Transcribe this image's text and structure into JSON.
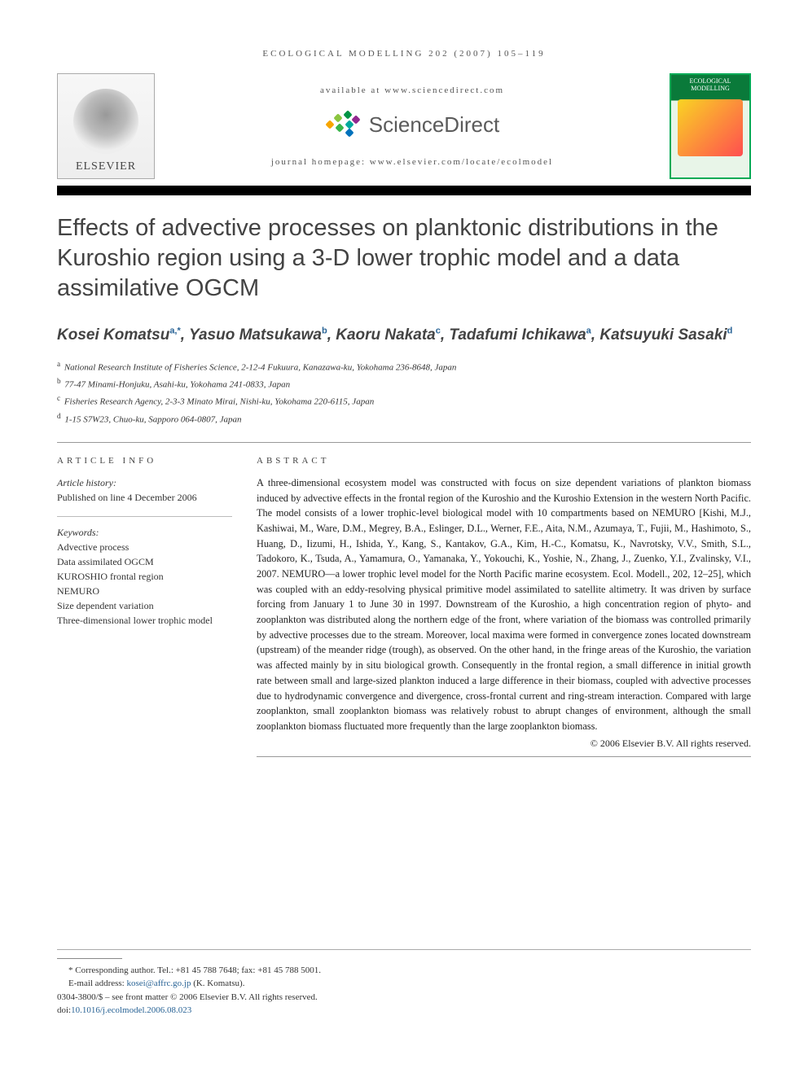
{
  "running_head": "ECOLOGICAL MODELLING 202 (2007) 105–119",
  "masthead": {
    "elsevier_wordmark": "ELSEVIER",
    "available_line": "available at www.sciencedirect.com",
    "sciencedirect_word": "ScienceDirect",
    "journal_homepage": "journal homepage: www.elsevier.com/locate/ecolmodel",
    "cover_title": "ECOLOGICAL MODELLING"
  },
  "title": "Effects of advective processes on planktonic distributions in the Kuroshio region using a 3-D lower trophic model and a data assimilative OGCM",
  "authors_html": "Kosei Komatsu<sup>a,*</sup>, Yasuo Matsukawa<sup>b</sup>, Kaoru Nakata<sup>c</sup>, Tadafumi Ichikawa<sup>a</sup>, Katsuyuki Sasaki<sup>d</sup>",
  "affiliations": [
    {
      "sup": "a",
      "text": "National Research Institute of Fisheries Science, 2-12-4 Fukuura, Kanazawa-ku, Yokohama 236-8648, Japan"
    },
    {
      "sup": "b",
      "text": "77-47 Minami-Honjuku, Asahi-ku, Yokohama 241-0833, Japan"
    },
    {
      "sup": "c",
      "text": "Fisheries Research Agency, 2-3-3 Minato Mirai, Nishi-ku, Yokohama 220-6115, Japan"
    },
    {
      "sup": "d",
      "text": "1-15 S7W23, Chuo-ku, Sapporo 064-0807, Japan"
    }
  ],
  "article_info": {
    "head": "ARTICLE INFO",
    "history_label": "Article history:",
    "history_value": "Published on line 4 December 2006",
    "keywords_label": "Keywords:",
    "keywords": [
      "Advective process",
      "Data assimilated OGCM",
      "KUROSHIO frontal region",
      "NEMURO",
      "Size dependent variation",
      "Three-dimensional lower trophic model"
    ]
  },
  "abstract": {
    "head": "ABSTRACT",
    "body": "A three-dimensional ecosystem model was constructed with focus on size dependent variations of plankton biomass induced by advective effects in the frontal region of the Kuroshio and the Kuroshio Extension in the western North Pacific. The model consists of a lower trophic-level biological model with 10 compartments based on NEMURO [Kishi, M.J., Kashiwai, M., Ware, D.M., Megrey, B.A., Eslinger, D.L., Werner, F.E., Aita, N.M., Azumaya, T., Fujii, M., Hashimoto, S., Huang, D., Iizumi, H., Ishida, Y., Kang, S., Kantakov, G.A., Kim, H.-C., Komatsu, K., Navrotsky, V.V., Smith, S.L., Tadokoro, K., Tsuda, A., Yamamura, O., Yamanaka, Y., Yokouchi, K., Yoshie, N., Zhang, J., Zuenko, Y.I., Zvalinsky, V.I., 2007. NEMURO—a lower trophic level model for the North Pacific marine ecosystem. Ecol. Modell., 202, 12–25], which was coupled with an eddy-resolving physical primitive model assimilated to satellite altimetry. It was driven by surface forcing from January 1 to June 30 in 1997. Downstream of the Kuroshio, a high concentration region of phyto- and zooplankton was distributed along the northern edge of the front, where variation of the biomass was controlled primarily by advective processes due to the stream. Moreover, local maxima were formed in convergence zones located downstream (upstream) of the meander ridge (trough), as observed. On the other hand, in the fringe areas of the Kuroshio, the variation was affected mainly by in situ biological growth. Consequently in the frontal region, a small difference in initial growth rate between small and large-sized plankton induced a large difference in their biomass, coupled with advective processes due to hydrodynamic convergence and divergence, cross-frontal current and ring-stream interaction. Compared with large zooplankton, small zooplankton biomass was relatively robust to abrupt changes of environment, although the small zooplankton biomass fluctuated more frequently than the large zooplankton biomass.",
    "copyright": "© 2006 Elsevier B.V. All rights reserved."
  },
  "footer": {
    "corresponding": "* Corresponding author. Tel.: +81 45 788 7648; fax: +81 45 788 5001.",
    "email_label": "E-mail address:",
    "email": "kosei@affrc.go.jp",
    "email_name": "(K. Komatsu).",
    "front_matter": "0304-3800/$ – see front matter © 2006 Elsevier B.V. All rights reserved.",
    "doi_label": "doi:",
    "doi": "10.1016/j.ecolmodel.2006.08.023"
  },
  "colors": {
    "link": "#2a6496",
    "heading": "#434343",
    "rule": "#000000"
  }
}
